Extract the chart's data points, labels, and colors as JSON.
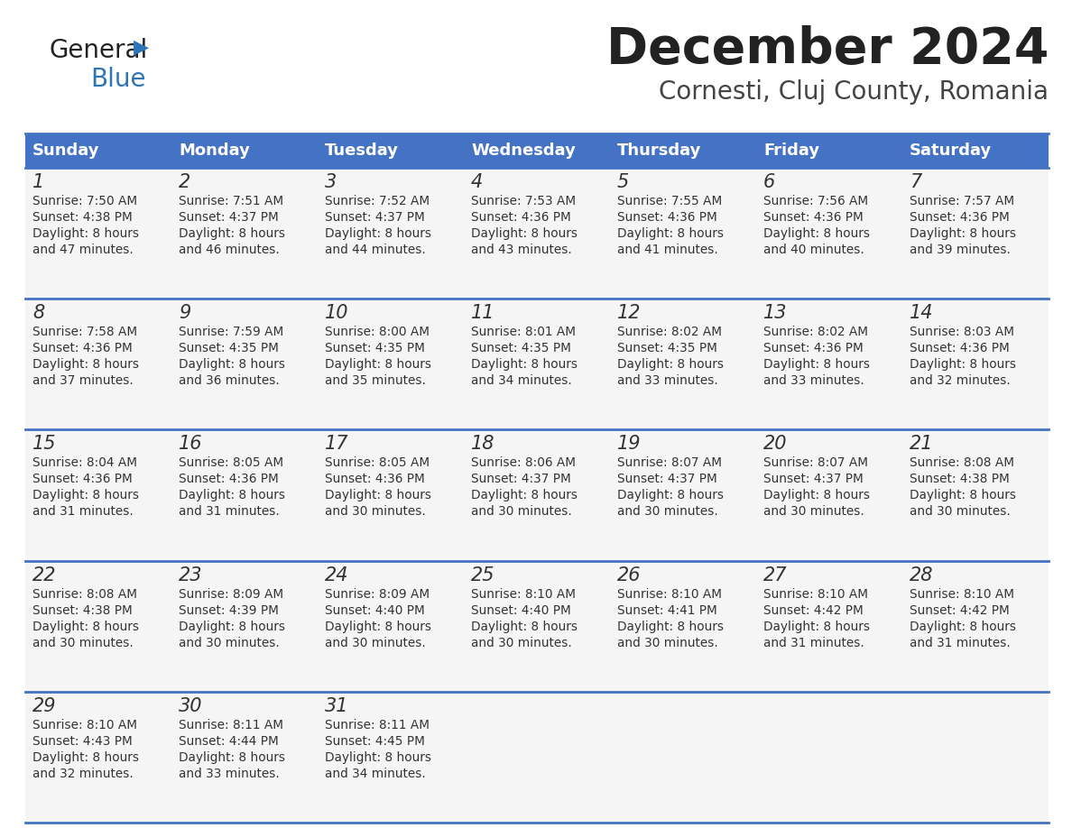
{
  "title": "December 2024",
  "subtitle": "Cornesti, Cluj County, Romania",
  "header_bg_color": "#4472C4",
  "header_text_color": "#FFFFFF",
  "day_headers": [
    "Sunday",
    "Monday",
    "Tuesday",
    "Wednesday",
    "Thursday",
    "Friday",
    "Saturday"
  ],
  "cell_border_color": "#4472C4",
  "text_color": "#333333",
  "logo_general_color": "#222222",
  "logo_blue_color": "#2E75B6",
  "calendar_data": [
    [
      {
        "day": 1,
        "sunrise": "7:50 AM",
        "sunset": "4:38 PM",
        "daylight": "8 hours and 47 minutes."
      },
      {
        "day": 2,
        "sunrise": "7:51 AM",
        "sunset": "4:37 PM",
        "daylight": "8 hours and 46 minutes."
      },
      {
        "day": 3,
        "sunrise": "7:52 AM",
        "sunset": "4:37 PM",
        "daylight": "8 hours and 44 minutes."
      },
      {
        "day": 4,
        "sunrise": "7:53 AM",
        "sunset": "4:36 PM",
        "daylight": "8 hours and 43 minutes."
      },
      {
        "day": 5,
        "sunrise": "7:55 AM",
        "sunset": "4:36 PM",
        "daylight": "8 hours and 41 minutes."
      },
      {
        "day": 6,
        "sunrise": "7:56 AM",
        "sunset": "4:36 PM",
        "daylight": "8 hours and 40 minutes."
      },
      {
        "day": 7,
        "sunrise": "7:57 AM",
        "sunset": "4:36 PM",
        "daylight": "8 hours and 39 minutes."
      }
    ],
    [
      {
        "day": 8,
        "sunrise": "7:58 AM",
        "sunset": "4:36 PM",
        "daylight": "8 hours and 37 minutes."
      },
      {
        "day": 9,
        "sunrise": "7:59 AM",
        "sunset": "4:35 PM",
        "daylight": "8 hours and 36 minutes."
      },
      {
        "day": 10,
        "sunrise": "8:00 AM",
        "sunset": "4:35 PM",
        "daylight": "8 hours and 35 minutes."
      },
      {
        "day": 11,
        "sunrise": "8:01 AM",
        "sunset": "4:35 PM",
        "daylight": "8 hours and 34 minutes."
      },
      {
        "day": 12,
        "sunrise": "8:02 AM",
        "sunset": "4:35 PM",
        "daylight": "8 hours and 33 minutes."
      },
      {
        "day": 13,
        "sunrise": "8:02 AM",
        "sunset": "4:36 PM",
        "daylight": "8 hours and 33 minutes."
      },
      {
        "day": 14,
        "sunrise": "8:03 AM",
        "sunset": "4:36 PM",
        "daylight": "8 hours and 32 minutes."
      }
    ],
    [
      {
        "day": 15,
        "sunrise": "8:04 AM",
        "sunset": "4:36 PM",
        "daylight": "8 hours and 31 minutes."
      },
      {
        "day": 16,
        "sunrise": "8:05 AM",
        "sunset": "4:36 PM",
        "daylight": "8 hours and 31 minutes."
      },
      {
        "day": 17,
        "sunrise": "8:05 AM",
        "sunset": "4:36 PM",
        "daylight": "8 hours and 30 minutes."
      },
      {
        "day": 18,
        "sunrise": "8:06 AM",
        "sunset": "4:37 PM",
        "daylight": "8 hours and 30 minutes."
      },
      {
        "day": 19,
        "sunrise": "8:07 AM",
        "sunset": "4:37 PM",
        "daylight": "8 hours and 30 minutes."
      },
      {
        "day": 20,
        "sunrise": "8:07 AM",
        "sunset": "4:37 PM",
        "daylight": "8 hours and 30 minutes."
      },
      {
        "day": 21,
        "sunrise": "8:08 AM",
        "sunset": "4:38 PM",
        "daylight": "8 hours and 30 minutes."
      }
    ],
    [
      {
        "day": 22,
        "sunrise": "8:08 AM",
        "sunset": "4:38 PM",
        "daylight": "8 hours and 30 minutes."
      },
      {
        "day": 23,
        "sunrise": "8:09 AM",
        "sunset": "4:39 PM",
        "daylight": "8 hours and 30 minutes."
      },
      {
        "day": 24,
        "sunrise": "8:09 AM",
        "sunset": "4:40 PM",
        "daylight": "8 hours and 30 minutes."
      },
      {
        "day": 25,
        "sunrise": "8:10 AM",
        "sunset": "4:40 PM",
        "daylight": "8 hours and 30 minutes."
      },
      {
        "day": 26,
        "sunrise": "8:10 AM",
        "sunset": "4:41 PM",
        "daylight": "8 hours and 30 minutes."
      },
      {
        "day": 27,
        "sunrise": "8:10 AM",
        "sunset": "4:42 PM",
        "daylight": "8 hours and 31 minutes."
      },
      {
        "day": 28,
        "sunrise": "8:10 AM",
        "sunset": "4:42 PM",
        "daylight": "8 hours and 31 minutes."
      }
    ],
    [
      {
        "day": 29,
        "sunrise": "8:10 AM",
        "sunset": "4:43 PM",
        "daylight": "8 hours and 32 minutes."
      },
      {
        "day": 30,
        "sunrise": "8:11 AM",
        "sunset": "4:44 PM",
        "daylight": "8 hours and 33 minutes."
      },
      {
        "day": 31,
        "sunrise": "8:11 AM",
        "sunset": "4:45 PM",
        "daylight": "8 hours and 34 minutes."
      },
      null,
      null,
      null,
      null
    ]
  ]
}
